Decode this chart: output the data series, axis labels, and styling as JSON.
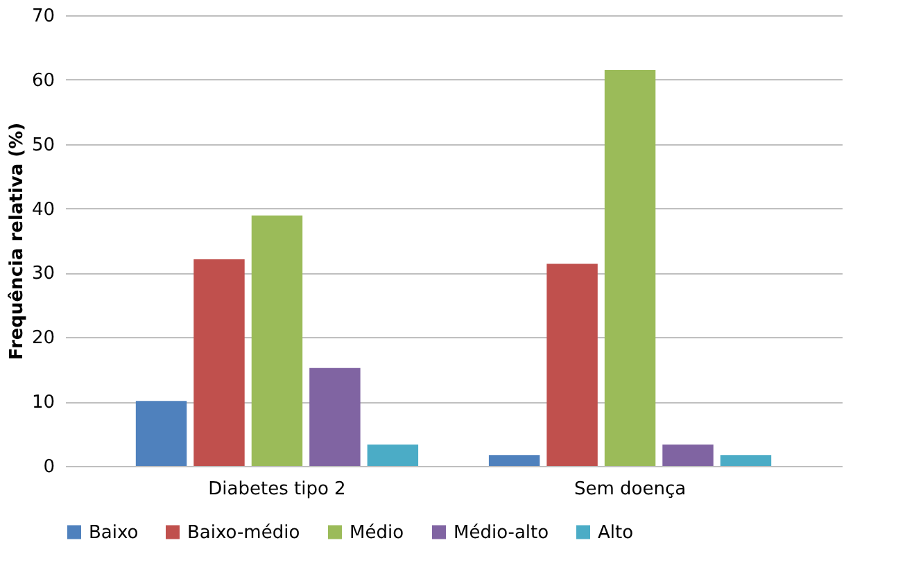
{
  "chart_data": {
    "type": "bar",
    "ylabel": "Frequência relativa (%)",
    "categories": [
      "Diabetes tipo 2",
      "Sem doença"
    ],
    "series": [
      {
        "name": "Baixo",
        "color": "#4f81bd",
        "values": [
          10.1,
          1.7
        ]
      },
      {
        "name": "Baixo-médio",
        "color": "#c0504d",
        "values": [
          32.1,
          31.4
        ]
      },
      {
        "name": "Médio",
        "color": "#9bbb59",
        "values": [
          38.9,
          61.5
        ]
      },
      {
        "name": "Médio-alto",
        "color": "#8064a2",
        "values": [
          15.2,
          3.3
        ]
      },
      {
        "name": "Alto",
        "color": "#4bacc6",
        "values": [
          3.3,
          1.7
        ]
      }
    ],
    "ylim": [
      0,
      70
    ],
    "yticks": [
      0,
      10,
      20,
      30,
      40,
      50,
      60,
      70
    ],
    "grid": "y",
    "legend": "bottom"
  }
}
